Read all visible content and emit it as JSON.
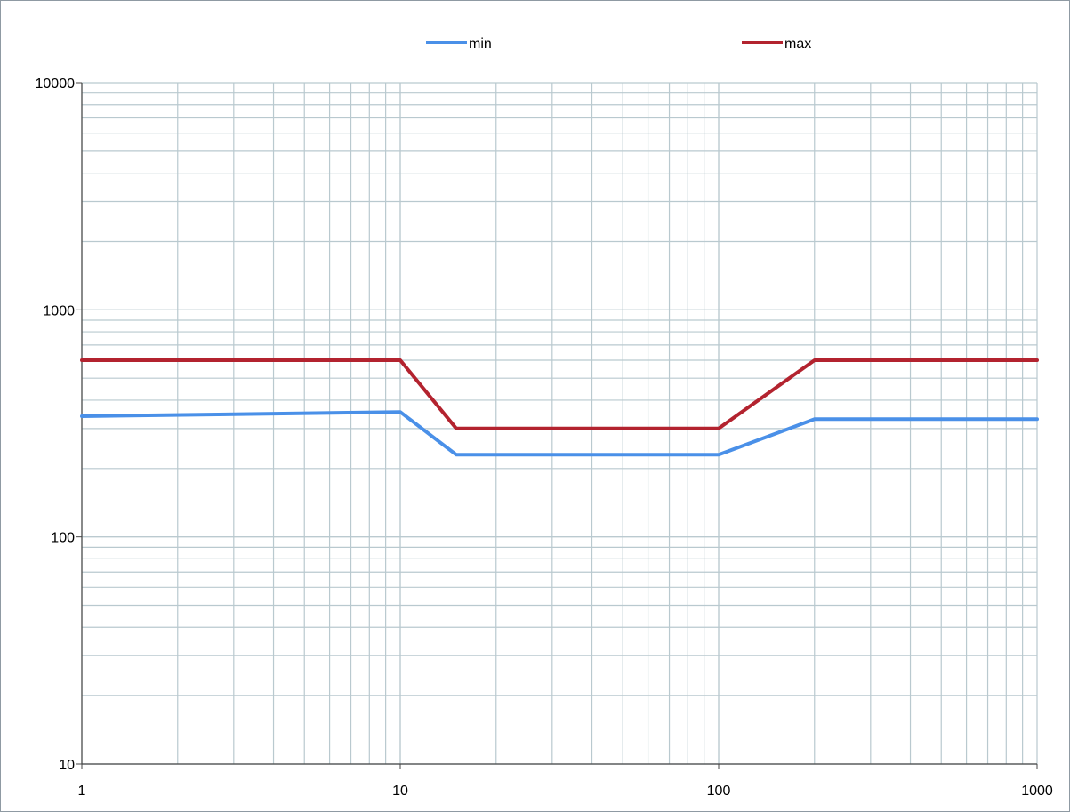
{
  "chart_data": {
    "type": "line",
    "xscale": "log",
    "yscale": "log",
    "xlim": [
      1,
      1000
    ],
    "ylim": [
      10,
      10000
    ],
    "grid": true,
    "legend_position": "top",
    "x_tick_labels": [
      "1",
      "10",
      "100",
      "1000"
    ],
    "y_tick_labels": [
      "10",
      "100",
      "1000",
      "10000"
    ],
    "series": [
      {
        "name": "min",
        "color": "#4a90e8",
        "x": [
          1,
          10,
          15,
          100,
          200,
          1000
        ],
        "y": [
          340,
          355,
          230,
          230,
          330,
          330
        ]
      },
      {
        "name": "max",
        "color": "#b3232f",
        "x": [
          1,
          10,
          15,
          100,
          200,
          1000
        ],
        "y": [
          600,
          600,
          300,
          300,
          600,
          600
        ]
      }
    ],
    "colors": {
      "grid": "#b9c9cf",
      "axis": "#444444",
      "frame": "#8f9aa3"
    }
  }
}
